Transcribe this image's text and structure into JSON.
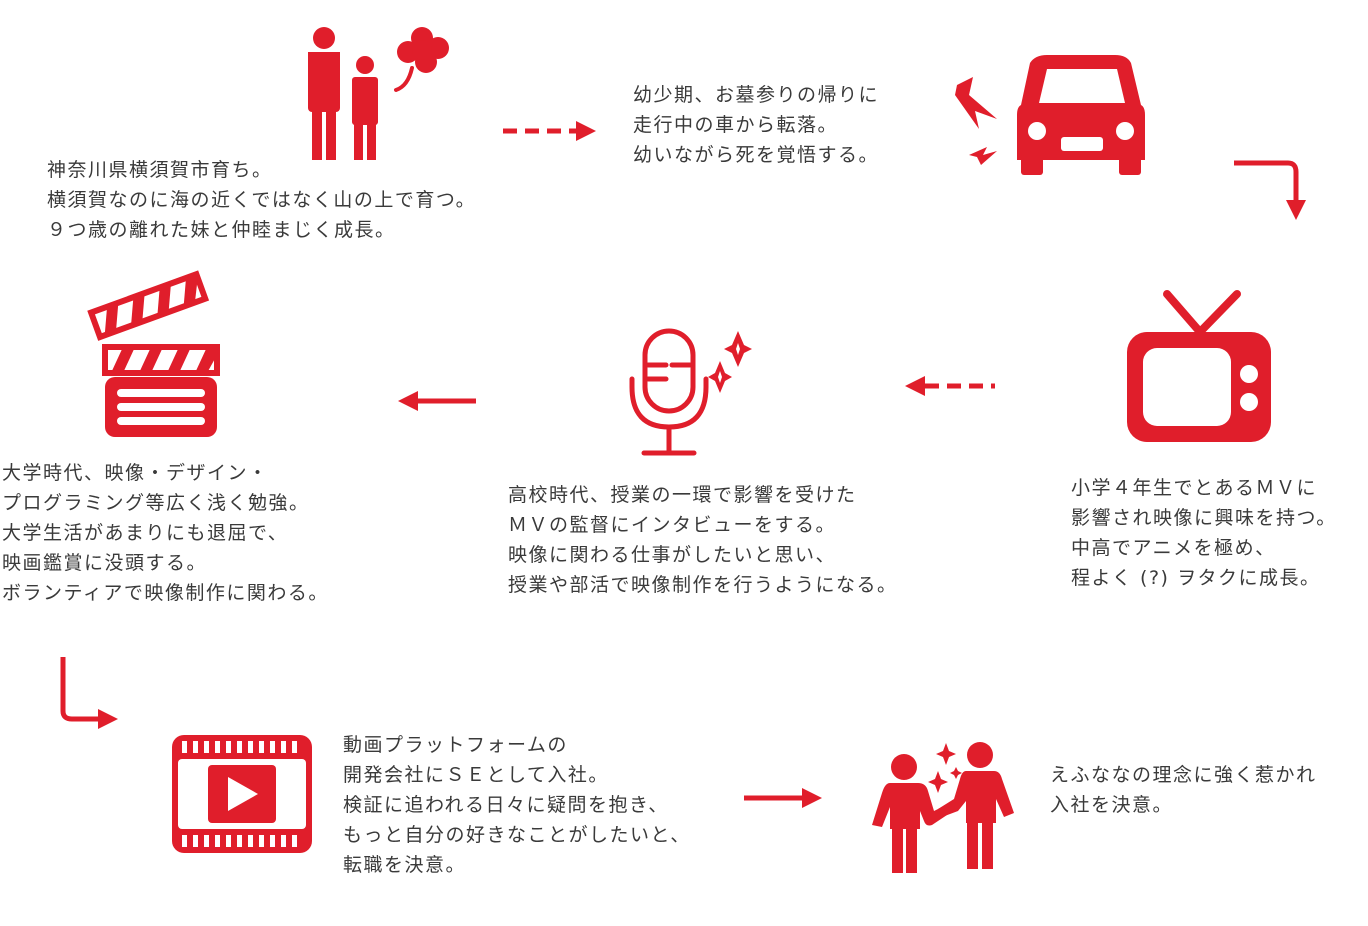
{
  "accent_color": "#e01e2b",
  "text_color": "#3a3a3a",
  "steps": [
    {
      "icon": "family-clover-icon",
      "lines": [
        "神奈川県横須賀市育ち。",
        "横須賀なのに海の近くではなく山の上で育つ。",
        "９つ歳の離れた妹と仲睦まじく成長。"
      ]
    },
    {
      "icon": "car-crash-icon",
      "lines": [
        "幼少期、お墓参りの帰りに",
        "走行中の車から転落。",
        "幼いながら死を覚悟する。"
      ]
    },
    {
      "icon": "tv-icon",
      "lines": [
        "小学４年生でとあるＭＶに",
        "影響され映像に興味を持つ。",
        "中高でアニメを極め、",
        "程よく (?) ヲタクに成長。"
      ]
    },
    {
      "icon": "microphone-icon",
      "lines": [
        "高校時代、授業の一環で影響を受けた",
        "ＭＶの監督にインタビューをする。",
        "映像に関わる仕事がしたいと思い、",
        "授業や部活で映像制作を行うようになる。"
      ]
    },
    {
      "icon": "clapperboard-icon",
      "lines": [
        "大学時代、映像・デザイン・",
        "プログラミング等広く浅く勉強。",
        "大学生活があまりにも退屈で、",
        "映画鑑賞に没頭する。",
        "ボランティアで映像制作に関わる。"
      ]
    },
    {
      "icon": "video-play-icon",
      "lines": [
        "動画プラットフォームの",
        "開発会社にＳＥとして入社。",
        "検証に追われる日々に疑問を抱き、",
        "もっと自分の好きなことがしたいと、",
        "転職を決意。"
      ]
    },
    {
      "icon": "handshake-icon",
      "lines": [
        "えふななの理念に強く惹かれ",
        "入社を決意。"
      ]
    }
  ]
}
